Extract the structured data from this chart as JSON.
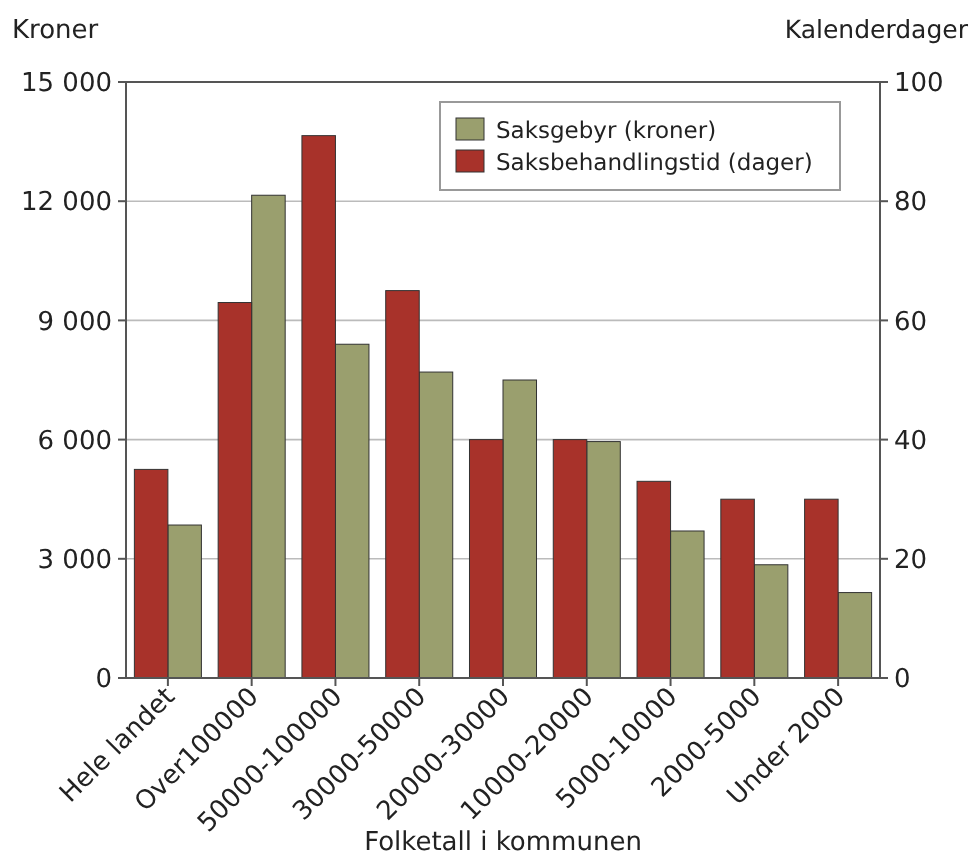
{
  "chart_data": {
    "type": "bar",
    "xlabel": "Folketall i kommunen",
    "ylabel": "Kroner",
    "y2label": "Kalenderdager",
    "categories": [
      "Hele landet",
      "Over100000",
      "50000-100000",
      "30000-50000",
      "20000-30000",
      "10000-20000",
      "5000-10000",
      "2000-5000",
      "Under 2000"
    ],
    "series": [
      {
        "name": "Saksgebyr (kroner)",
        "color": "#9a9f6e",
        "values": [
          3850,
          12150,
          8400,
          7700,
          7500,
          5950,
          3700,
          2850,
          2150
        ]
      },
      {
        "name": "Saksbehandlingstid (dager)",
        "color": "#a8322a",
        "axis": "y2",
        "values": [
          35,
          63,
          91,
          65,
          40,
          40,
          33,
          30,
          30
        ]
      }
    ],
    "ylim": [
      0,
      15000
    ],
    "yticks": [
      0,
      {
        "value": 3000,
        "label": "3 000"
      },
      {
        "value": 6000,
        "label": "6 000"
      },
      {
        "value": 9000,
        "label": "9 000"
      },
      {
        "value": 12000,
        "label": "12 000"
      },
      {
        "value": 15000,
        "label": "15 000"
      }
    ],
    "y2lim": [
      0,
      100
    ],
    "y2ticks": [
      0,
      20,
      40,
      60,
      80,
      100
    ],
    "grid": "y",
    "legend": "top right"
  }
}
